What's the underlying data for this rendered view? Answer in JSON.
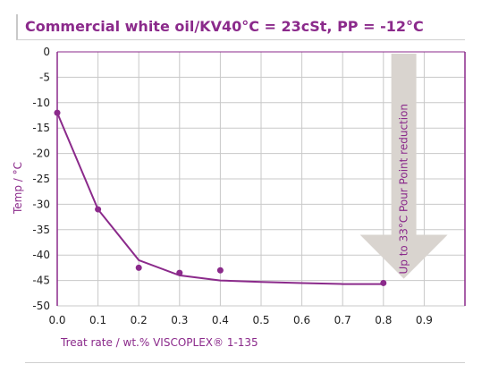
{
  "chart_data": {
    "type": "line",
    "title": "Commercial white oil/KV40°C = 23cSt, PP = -12°C",
    "xlabel": "Treat rate / wt.% VISCOPLEX® 1-135",
    "ylabel": "Temp / °C",
    "xlim": [
      0,
      1.0
    ],
    "ylim": [
      -50,
      0
    ],
    "x_ticks": [
      0.0,
      0.1,
      0.2,
      0.3,
      0.4,
      0.5,
      0.6,
      0.7,
      0.8,
      0.9
    ],
    "x_tick_labels": [
      "0.0",
      "0.1",
      "0.2",
      "0.3",
      "0.4",
      "0.5",
      "0.6",
      "0.7",
      "0.8",
      "0.9"
    ],
    "y_ticks": [
      0,
      -5,
      -10,
      -15,
      -20,
      -25,
      -30,
      -35,
      -40,
      -45,
      -50
    ],
    "y_tick_labels": [
      "0",
      "-5",
      "-10",
      "-15",
      "-20",
      "-25",
      "-30",
      "-35",
      "-40",
      "-45",
      "-50"
    ],
    "grid": true,
    "series": [
      {
        "name": "",
        "kind": "markers",
        "x": [
          0.0,
          0.1,
          0.2,
          0.3,
          0.4,
          0.8
        ],
        "y": [
          -12,
          -31,
          -42.5,
          -43.5,
          -43,
          -45.5
        ]
      },
      {
        "name": "",
        "kind": "fit-line",
        "x": [
          0.0,
          0.1,
          0.2,
          0.3,
          0.4,
          0.5,
          0.6,
          0.7,
          0.8
        ],
        "y": [
          -12,
          -31,
          -41,
          -44,
          -45,
          -45.3,
          -45.5,
          -45.7,
          -45.7
        ]
      }
    ],
    "annotation": {
      "text": "Up to 33°C  Pour Point reduction",
      "x": 0.85,
      "y_from": 0,
      "y_to": -45
    },
    "colors": {
      "accent": "#8b2a8b",
      "grid": "#c8c8c8",
      "arrow": "#d9d4cf"
    }
  }
}
